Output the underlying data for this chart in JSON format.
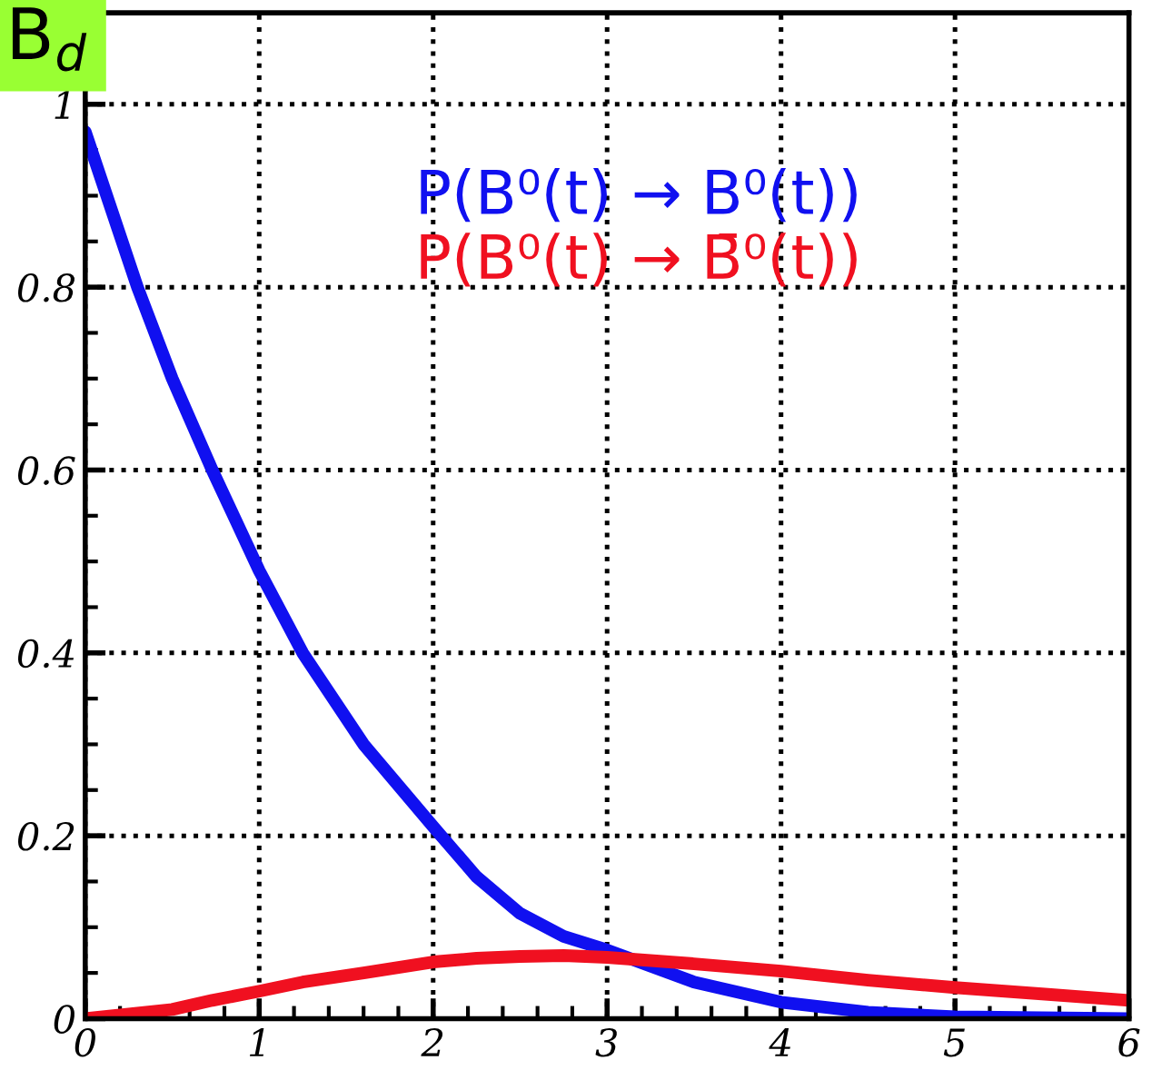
{
  "chart_data": {
    "type": "line",
    "x": [
      0,
      0.3,
      0.5,
      0.73,
      1,
      1.25,
      1.6,
      2,
      2.25,
      2.5,
      2.75,
      3,
      3.5,
      4,
      4.5,
      5,
      5.5,
      6
    ],
    "series": [
      {
        "name": "P(B⁰(t) → B⁰(t))",
        "color": "#1010f0",
        "values": [
          0.97,
          0.8,
          0.7,
          0.6,
          0.49,
          0.4,
          0.3,
          0.21,
          0.155,
          0.115,
          0.09,
          0.075,
          0.04,
          0.018,
          0.007,
          0.002,
          0.001,
          0
        ]
      },
      {
        "name": "P(B⁰(t) → B̄⁰(t))",
        "color": "#f01020",
        "values": [
          0,
          0.006,
          0.01,
          0.02,
          0.03,
          0.04,
          0.05,
          0.062,
          0.066,
          0.068,
          0.069,
          0.067,
          0.06,
          0.052,
          0.042,
          0.034,
          0.027,
          0.02
        ]
      }
    ],
    "xlim": [
      0,
      6
    ],
    "ylim": [
      0,
      1.1
    ],
    "xticks": [
      0,
      1,
      2,
      3,
      4,
      5,
      6
    ],
    "yticks": [
      0,
      0.2,
      0.4,
      0.6,
      0.8,
      1
    ],
    "grid": true,
    "legend": "top",
    "marker": "none",
    "line_style": "solid",
    "annotations": [
      "B$_{d}$"
    ]
  }
}
